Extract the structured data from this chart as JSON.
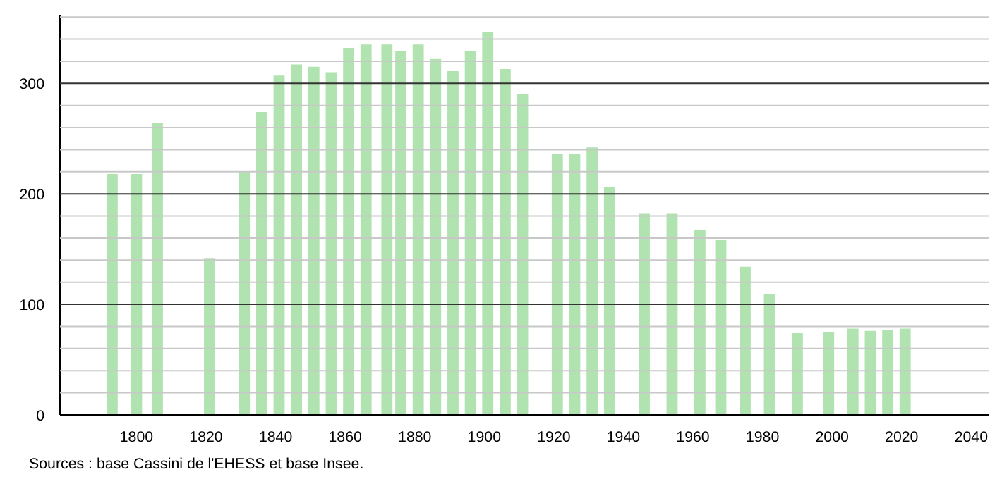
{
  "chart_data": {
    "type": "bar",
    "color": "#b0e3b0",
    "x": [
      1793,
      1800,
      1806,
      1821,
      1831,
      1836,
      1841,
      1846,
      1851,
      1856,
      1861,
      1866,
      1872,
      1876,
      1881,
      1886,
      1891,
      1896,
      1901,
      1906,
      1911,
      1921,
      1926,
      1931,
      1936,
      1946,
      1954,
      1962,
      1968,
      1975,
      1982,
      1990,
      1999,
      2006,
      2011,
      2016,
      2021
    ],
    "values": [
      218,
      218,
      264,
      142,
      220,
      274,
      307,
      317,
      315,
      310,
      332,
      335,
      335,
      329,
      335,
      322,
      311,
      329,
      346,
      313,
      290,
      236,
      236,
      242,
      206,
      182,
      182,
      167,
      158,
      134,
      109,
      74,
      75,
      78,
      76,
      77,
      78
    ],
    "xlim": [
      1778,
      2045
    ],
    "xticks": [
      1800,
      1820,
      1840,
      1860,
      1880,
      1900,
      1920,
      1940,
      1960,
      1980,
      2000,
      2020,
      2040
    ],
    "ylim": [
      0,
      362
    ],
    "yticks": [
      0,
      {
        "value": 20,
        "label": null
      },
      {
        "value": 40,
        "label": null
      },
      {
        "value": 60,
        "label": null
      },
      {
        "value": 80,
        "label": null
      },
      100,
      {
        "value": 120,
        "label": null
      },
      {
        "value": 140,
        "label": null
      },
      {
        "value": 160,
        "label": null
      },
      {
        "value": 180,
        "label": null
      },
      200,
      {
        "value": 220,
        "label": null
      },
      {
        "value": 240,
        "label": null
      },
      {
        "value": 260,
        "label": null
      },
      {
        "value": 280,
        "label": null
      },
      300,
      {
        "value": 320,
        "label": null
      },
      {
        "value": 340,
        "label": null
      },
      {
        "value": 360,
        "label": null
      }
    ],
    "grid": "y",
    "annotations": [
      "Sources : base Cassini de l'EHESS et base Insee."
    ]
  }
}
